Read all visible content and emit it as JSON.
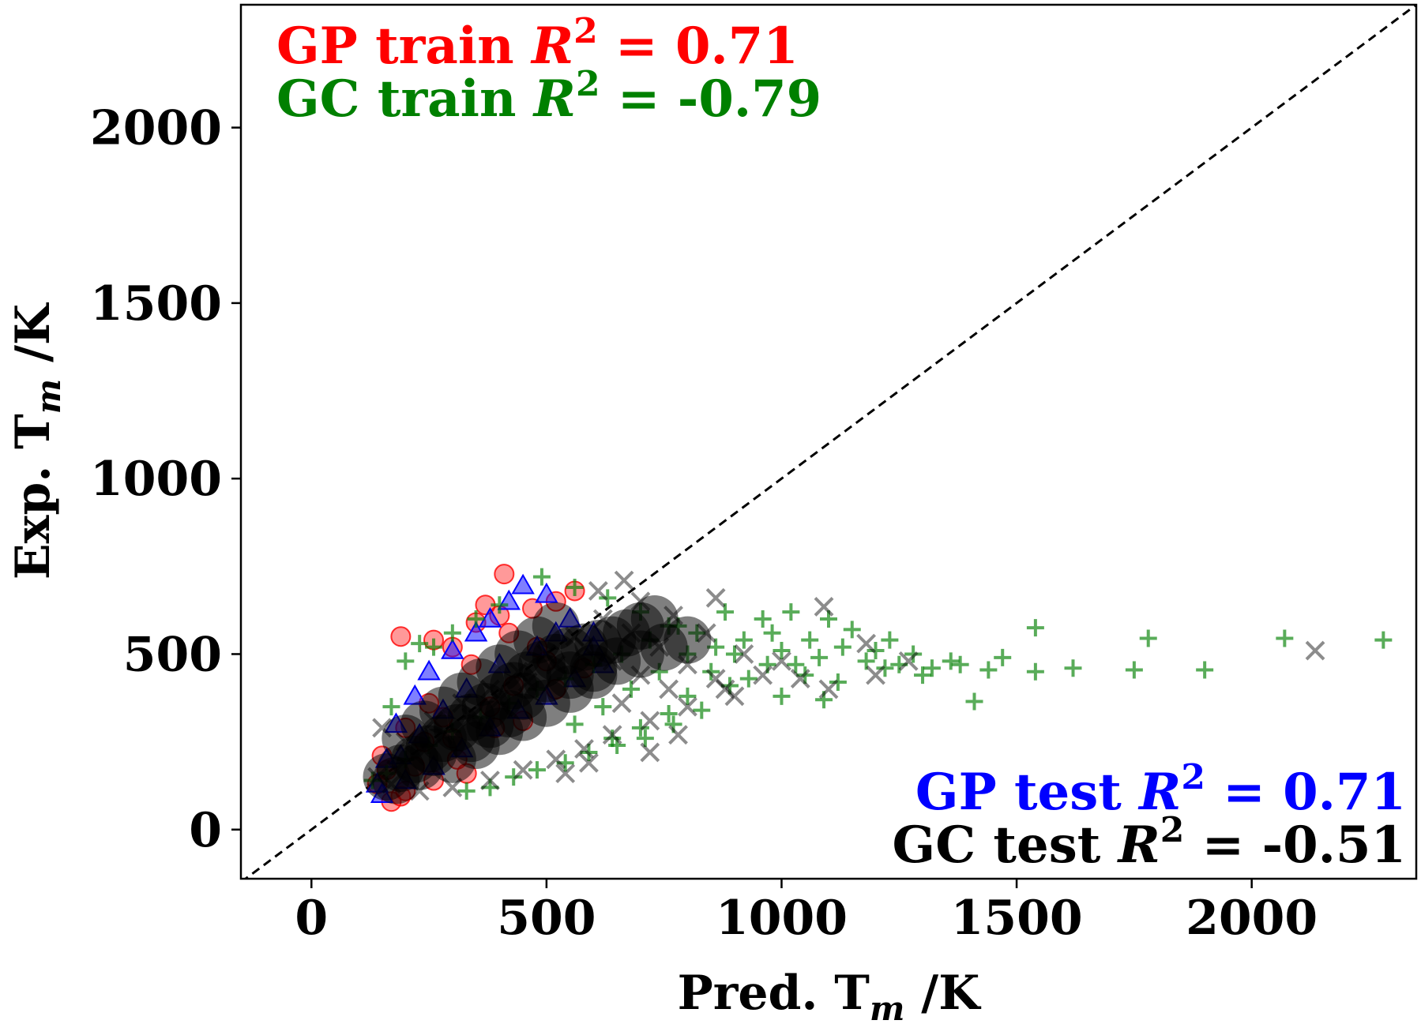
{
  "chart_data": {
    "type": "scatter",
    "xlabel": "Pred. T",
    "xlabel_sub": "m",
    "xlabel_unit": " /K",
    "ylabel": "Exp. T",
    "ylabel_sub": "m",
    "ylabel_unit": " /K",
    "xlim": [
      -150,
      2350
    ],
    "ylim": [
      -140,
      2350
    ],
    "xticks": [
      0,
      500,
      1000,
      1500,
      2000
    ],
    "yticks": [
      0,
      500,
      1000,
      1500,
      2000
    ],
    "grid": false,
    "legend": "none",
    "diagonal": {
      "style": "dashed",
      "color": "#000000",
      "from": [
        -150,
        -150
      ],
      "to": [
        2350,
        2350
      ]
    },
    "annotations": [
      {
        "id": "gp-train",
        "prefix": "GP train ",
        "var": "R",
        "sup": "2",
        "value": " = 0.71",
        "color": "#ff0000",
        "anchor": "top-left"
      },
      {
        "id": "gc-train",
        "prefix": "GC train ",
        "var": "R",
        "sup": "2",
        "value": " = -0.79",
        "color": "#008000",
        "anchor": "top-left"
      },
      {
        "id": "gp-test",
        "prefix": "GP test ",
        "var": "R",
        "sup": "2",
        "value": " = 0.71",
        "color": "#0000ff",
        "anchor": "bottom-right"
      },
      {
        "id": "gc-test",
        "prefix": "GC test ",
        "var": "R",
        "sup": "2",
        "value": " = -0.51",
        "color": "#000000",
        "anchor": "bottom-right"
      }
    ],
    "series": [
      {
        "marker": "circle",
        "color": "#ff0000",
        "alpha": 0.4,
        "points": [
          [
            410,
            728
          ],
          [
            560,
            680
          ],
          [
            370,
            640
          ],
          [
            400,
            610
          ],
          [
            190,
            550
          ],
          [
            260,
            540
          ],
          [
            300,
            520
          ],
          [
            470,
            630
          ],
          [
            520,
            650
          ],
          [
            350,
            590
          ],
          [
            200,
            110
          ],
          [
            170,
            80
          ],
          [
            330,
            160
          ],
          [
            450,
            310
          ],
          [
            520,
            400
          ],
          [
            580,
            460
          ],
          [
            240,
            250
          ],
          [
            280,
            320
          ],
          [
            160,
            170
          ],
          [
            140,
            130
          ],
          [
            220,
            180
          ],
          [
            300,
            260
          ],
          [
            380,
            350
          ],
          [
            430,
            410
          ],
          [
            500,
            480
          ],
          [
            480,
            520
          ],
          [
            420,
            560
          ],
          [
            340,
            470
          ],
          [
            250,
            360
          ],
          [
            200,
            290
          ],
          [
            150,
            210
          ],
          [
            190,
            95
          ],
          [
            260,
            140
          ],
          [
            310,
            200
          ],
          [
            390,
            290
          ]
        ]
      },
      {
        "marker": "triangle",
        "color": "#0000ff",
        "alpha": 0.5,
        "points": [
          [
            450,
            695
          ],
          [
            500,
            670
          ],
          [
            420,
            650
          ],
          [
            380,
            600
          ],
          [
            550,
            600
          ],
          [
            600,
            560
          ],
          [
            350,
            560
          ],
          [
            300,
            510
          ],
          [
            250,
            450
          ],
          [
            220,
            380
          ],
          [
            180,
            300
          ],
          [
            160,
            200
          ],
          [
            140,
            130
          ],
          [
            150,
            100
          ],
          [
            200,
            140
          ],
          [
            260,
            180
          ],
          [
            320,
            230
          ],
          [
            380,
            290
          ],
          [
            440,
            340
          ],
          [
            500,
            380
          ],
          [
            560,
            430
          ],
          [
            620,
            470
          ],
          [
            480,
            520
          ],
          [
            400,
            470
          ],
          [
            330,
            400
          ],
          [
            280,
            340
          ],
          [
            230,
            270
          ],
          [
            190,
            210
          ],
          [
            600,
            520
          ],
          [
            520,
            560
          ]
        ]
      },
      {
        "marker": "plus",
        "color": "#008000",
        "alpha": 0.65,
        "points": [
          [
            2070,
            545
          ],
          [
            2280,
            540
          ],
          [
            1540,
            575
          ],
          [
            1780,
            545
          ],
          [
            1470,
            490
          ],
          [
            1360,
            480
          ],
          [
            1250,
            470
          ],
          [
            1180,
            480
          ],
          [
            1080,
            490
          ],
          [
            1150,
            570
          ],
          [
            1100,
            600
          ],
          [
            1020,
            620
          ],
          [
            980,
            560
          ],
          [
            1440,
            455
          ],
          [
            1540,
            450
          ],
          [
            1620,
            460
          ],
          [
            1750,
            455
          ],
          [
            1900,
            455
          ],
          [
            1410,
            365
          ],
          [
            1300,
            440
          ],
          [
            1220,
            460
          ],
          [
            1120,
            420
          ],
          [
            1030,
            470
          ],
          [
            930,
            430
          ],
          [
            1000,
            380
          ],
          [
            1090,
            370
          ],
          [
            900,
            500
          ],
          [
            850,
            450
          ],
          [
            800,
            380
          ],
          [
            760,
            330
          ],
          [
            700,
            290
          ],
          [
            640,
            260
          ],
          [
            590,
            220
          ],
          [
            540,
            190
          ],
          [
            480,
            170
          ],
          [
            430,
            150
          ],
          [
            380,
            120
          ],
          [
            330,
            110
          ],
          [
            560,
            300
          ],
          [
            620,
            350
          ],
          [
            680,
            400
          ],
          [
            740,
            450
          ],
          [
            800,
            500
          ],
          [
            860,
            520
          ],
          [
            920,
            540
          ],
          [
            960,
            600
          ],
          [
            880,
            620
          ],
          [
            780,
            580
          ],
          [
            720,
            540
          ],
          [
            660,
            500
          ],
          [
            600,
            470
          ],
          [
            540,
            430
          ],
          [
            480,
            400
          ],
          [
            420,
            360
          ],
          [
            360,
            320
          ],
          [
            300,
            280
          ],
          [
            250,
            240
          ],
          [
            200,
            200
          ],
          [
            160,
            160
          ],
          [
            130,
            140
          ],
          [
            170,
            350
          ],
          [
            200,
            480
          ],
          [
            230,
            530
          ],
          [
            260,
            520
          ],
          [
            300,
            560
          ],
          [
            350,
            600
          ],
          [
            400,
            640
          ],
          [
            490,
            720
          ],
          [
            560,
            690
          ],
          [
            630,
            660
          ],
          [
            700,
            620
          ],
          [
            760,
            580
          ],
          [
            820,
            560
          ],
          [
            1000,
            510
          ],
          [
            1060,
            540
          ],
          [
            1130,
            520
          ],
          [
            1200,
            510
          ],
          [
            1230,
            540
          ],
          [
            1280,
            500
          ],
          [
            1320,
            460
          ],
          [
            1380,
            470
          ],
          [
            1050,
            440
          ],
          [
            970,
            470
          ],
          [
            890,
            410
          ],
          [
            830,
            340
          ],
          [
            770,
            300
          ],
          [
            710,
            260
          ],
          [
            650,
            240
          ]
        ]
      },
      {
        "marker": "x",
        "color": "#000000",
        "alpha": 0.45,
        "points": [
          [
            2135,
            510
          ],
          [
            1180,
            530
          ],
          [
            1090,
            635
          ],
          [
            860,
            660
          ],
          [
            665,
            710
          ],
          [
            610,
            680
          ],
          [
            700,
            650
          ],
          [
            770,
            610
          ],
          [
            840,
            560
          ],
          [
            920,
            500
          ],
          [
            1000,
            480
          ],
          [
            1040,
            430
          ],
          [
            1100,
            400
          ],
          [
            1200,
            440
          ],
          [
            1270,
            480
          ],
          [
            960,
            440
          ],
          [
            880,
            400
          ],
          [
            800,
            350
          ],
          [
            720,
            310
          ],
          [
            640,
            270
          ],
          [
            580,
            230
          ],
          [
            520,
            200
          ],
          [
            450,
            170
          ],
          [
            380,
            140
          ],
          [
            300,
            120
          ],
          [
            230,
            110
          ],
          [
            170,
            130
          ],
          [
            140,
            150
          ],
          [
            200,
            250
          ],
          [
            260,
            310
          ],
          [
            320,
            360
          ],
          [
            380,
            400
          ],
          [
            440,
            450
          ],
          [
            500,
            500
          ],
          [
            560,
            550
          ],
          [
            620,
            600
          ],
          [
            680,
            560
          ],
          [
            740,
            520
          ],
          [
            800,
            470
          ],
          [
            860,
            430
          ],
          [
            900,
            380
          ],
          [
            760,
            400
          ],
          [
            700,
            440
          ],
          [
            640,
            480
          ],
          [
            580,
            520
          ],
          [
            520,
            470
          ],
          [
            460,
            420
          ],
          [
            400,
            370
          ],
          [
            340,
            320
          ],
          [
            280,
            270
          ],
          [
            220,
            210
          ],
          [
            180,
            170
          ],
          [
            150,
            290
          ],
          [
            590,
            190
          ],
          [
            540,
            160
          ],
          [
            660,
            360
          ],
          [
            720,
            220
          ],
          [
            780,
            270
          ]
        ]
      },
      {
        "marker": "cluster",
        "color": "#000000",
        "alpha": 0.5,
        "points": [
          [
            160,
            150
          ],
          [
            190,
            175
          ],
          [
            220,
            200
          ],
          [
            250,
            230
          ],
          [
            280,
            260
          ],
          [
            310,
            290
          ],
          [
            340,
            320
          ],
          [
            370,
            350
          ],
          [
            400,
            380
          ],
          [
            430,
            410
          ],
          [
            460,
            440
          ],
          [
            490,
            470
          ],
          [
            520,
            490
          ],
          [
            550,
            510
          ],
          [
            580,
            520
          ],
          [
            610,
            530
          ],
          [
            640,
            540
          ],
          [
            670,
            560
          ],
          [
            700,
            580
          ],
          [
            730,
            600
          ],
          [
            200,
            260
          ],
          [
            240,
            300
          ],
          [
            280,
            340
          ],
          [
            320,
            380
          ],
          [
            360,
            420
          ],
          [
            400,
            460
          ],
          [
            440,
            500
          ],
          [
            480,
            540
          ],
          [
            520,
            580
          ],
          [
            300,
            200
          ],
          [
            350,
            240
          ],
          [
            400,
            280
          ],
          [
            450,
            320
          ],
          [
            500,
            360
          ],
          [
            550,
            400
          ],
          [
            600,
            440
          ],
          [
            650,
            480
          ],
          [
            700,
            500
          ],
          [
            750,
            520
          ],
          [
            800,
            540
          ],
          [
            500,
            430
          ],
          [
            450,
            380
          ],
          [
            600,
            460
          ],
          [
            550,
            440
          ],
          [
            420,
            330
          ],
          [
            380,
            300
          ],
          [
            340,
            260
          ],
          [
            260,
            220
          ],
          [
            230,
            180
          ],
          [
            180,
            140
          ]
        ]
      }
    ]
  }
}
